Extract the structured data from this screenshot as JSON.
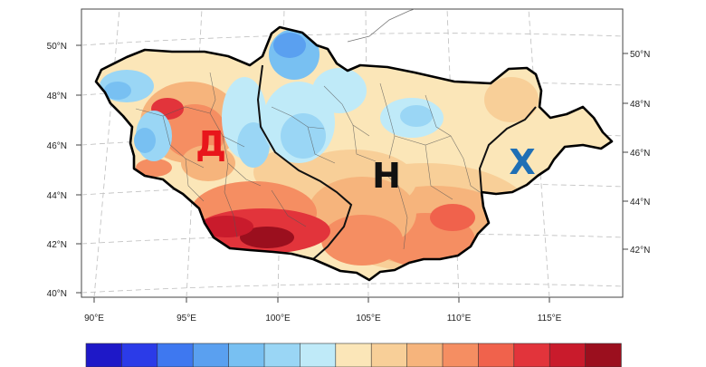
{
  "map": {
    "lat_labels_left": [
      "50°N",
      "48°N",
      "46°N",
      "44°N",
      "42°N",
      "40°N"
    ],
    "lat_labels_right": [
      "50°N",
      "48°N",
      "46°N",
      "44°N",
      "42°N"
    ],
    "lon_labels": [
      "90°E",
      "95°E",
      "100°E",
      "105°E",
      "110°E",
      "115°E"
    ],
    "regions": [
      {
        "key": "west",
        "label": "Д",
        "color": "#e8161b"
      },
      {
        "key": "central",
        "label": "Н",
        "color": "#111111"
      },
      {
        "key": "east",
        "label": "Х",
        "color": "#1f6fb5"
      }
    ]
  },
  "colorbar": {
    "colors": [
      "#1e18c8",
      "#2b3be8",
      "#3e78f0",
      "#5aa0f0",
      "#78c0f2",
      "#9ad6f5",
      "#bfeaf8",
      "#fbe6b8",
      "#f8cf98",
      "#f6b47c",
      "#f58e62",
      "#f0624c",
      "#e2343b",
      "#c91b2c",
      "#9b0f1e"
    ]
  }
}
